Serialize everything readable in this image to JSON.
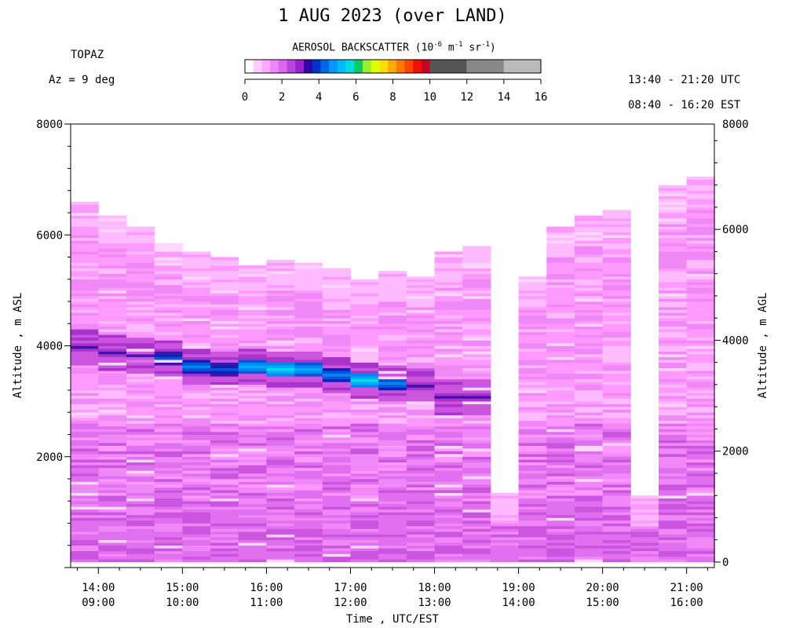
{
  "title": "1 AUG 2023 (over LAND)",
  "instrument": "TOPAZ",
  "azimuth": "Az =   9 deg",
  "time_range_utc": "13:40 - 21:20 UTC",
  "time_range_est": "08:40 - 16:20 EST",
  "colorbar": {
    "title_prefix": "AEROSOL BACKSCATTER (10",
    "exp1": "-6",
    "mid1": " m",
    "exp2": "-1",
    "mid2": " sr",
    "exp3": "-1",
    "suffix": ")",
    "ticks": [
      "0",
      "2",
      "4",
      "6",
      "8",
      "10",
      "12",
      "14",
      "16"
    ],
    "colors": [
      "#ffffff",
      "#ffccff",
      "#ffaaff",
      "#ee88ff",
      "#dd66ee",
      "#bb44dd",
      "#9922cc",
      "#3300aa",
      "#0033cc",
      "#0066ee",
      "#0099ff",
      "#00bbff",
      "#00dddd",
      "#00cc66",
      "#99ee33",
      "#ddff00",
      "#ffdd00",
      "#ffaa00",
      "#ff7700",
      "#ff4400",
      "#ee1100",
      "#cc0022",
      "#993344",
      "#555555",
      "#666666",
      "#888888",
      "#999999",
      "#bbbbbb",
      "#cccccc"
    ]
  },
  "chart_data": {
    "type": "heatmap",
    "title": "1 AUG 2023 (over LAND)",
    "xlabel": "Time , UTC/EST",
    "ylabel_left": "Altitude , m ASL",
    "ylabel_right": "Altitude , m AGL",
    "x_ticks_utc": [
      "14:00",
      "15:00",
      "16:00",
      "17:00",
      "18:00",
      "19:00",
      "20:00",
      "21:00"
    ],
    "x_ticks_est": [
      "09:00",
      "10:00",
      "11:00",
      "12:00",
      "13:00",
      "14:00",
      "15:00",
      "16:00"
    ],
    "x_tick_hours_utc": [
      14,
      15,
      16,
      17,
      18,
      19,
      20,
      21
    ],
    "xlim_hours_utc": [
      13.67,
      21.33
    ],
    "y_ticks_left": [
      "2000",
      "4000",
      "6000",
      "8000"
    ],
    "y_tick_values_left": [
      2000,
      4000,
      6000,
      8000
    ],
    "y_ticks_right": [
      "0",
      "2000",
      "4000",
      "6000",
      "8000"
    ],
    "y_tick_values_right": [
      0,
      2000,
      4000,
      6000,
      8000
    ],
    "ylim_m_asl": [
      0,
      8000
    ],
    "colorbar_range": [
      0,
      16
    ],
    "profile_interval_min": 20,
    "profiles": [
      {
        "start_utc": "13:40",
        "top_m": 6600,
        "bottom_m": 100
      },
      {
        "start_utc": "14:00",
        "top_m": 6350,
        "bottom_m": 100
      },
      {
        "start_utc": "14:20",
        "top_m": 6150,
        "bottom_m": 100
      },
      {
        "start_utc": "14:40",
        "top_m": 5850,
        "bottom_m": 100
      },
      {
        "start_utc": "15:00",
        "top_m": 5700,
        "bottom_m": 100
      },
      {
        "start_utc": "15:20",
        "top_m": 5600,
        "bottom_m": 100
      },
      {
        "start_utc": "15:40",
        "top_m": 5450,
        "bottom_m": 100
      },
      {
        "start_utc": "16:00",
        "top_m": 5550,
        "bottom_m": 100
      },
      {
        "start_utc": "16:20",
        "top_m": 5500,
        "bottom_m": 100
      },
      {
        "start_utc": "16:40",
        "top_m": 5400,
        "bottom_m": 100
      },
      {
        "start_utc": "17:00",
        "top_m": 5200,
        "bottom_m": 100
      },
      {
        "start_utc": "17:20",
        "top_m": 5350,
        "bottom_m": 100
      },
      {
        "start_utc": "17:40",
        "top_m": 5250,
        "bottom_m": 100
      },
      {
        "start_utc": "18:00",
        "top_m": 5700,
        "bottom_m": 100
      },
      {
        "start_utc": "18:20",
        "top_m": 5800,
        "bottom_m": 100
      },
      {
        "start_utc": "18:40",
        "top_m": 1350,
        "bottom_m": 100
      },
      {
        "start_utc": "19:00",
        "top_m": 5250,
        "bottom_m": 100
      },
      {
        "start_utc": "19:20",
        "top_m": 6150,
        "bottom_m": 100
      },
      {
        "start_utc": "19:40",
        "top_m": 6350,
        "bottom_m": 100
      },
      {
        "start_utc": "20:00",
        "top_m": 6450,
        "bottom_m": 100
      },
      {
        "start_utc": "20:20",
        "top_m": 1300,
        "bottom_m": 100
      },
      {
        "start_utc": "20:40",
        "top_m": 6900,
        "bottom_m": 100
      },
      {
        "start_utc": "21:00",
        "top_m": 7050,
        "bottom_m": 100
      }
    ],
    "elevated_layer": {
      "description_values_m": [
        3950,
        3850,
        3800,
        3750,
        3600,
        3550,
        3600,
        3550,
        3550,
        3450,
        3350,
        3300,
        3250,
        3050,
        3050
      ],
      "peak_backscatter": [
        3.0,
        3.0,
        2.8,
        4.0,
        4.5,
        4.0,
        5.0,
        5.5,
        5.0,
        4.5,
        5.5,
        4.5,
        3.0,
        3.0,
        3.0
      ]
    },
    "background_backscatter_range": [
      0.5,
      2.5
    ]
  }
}
